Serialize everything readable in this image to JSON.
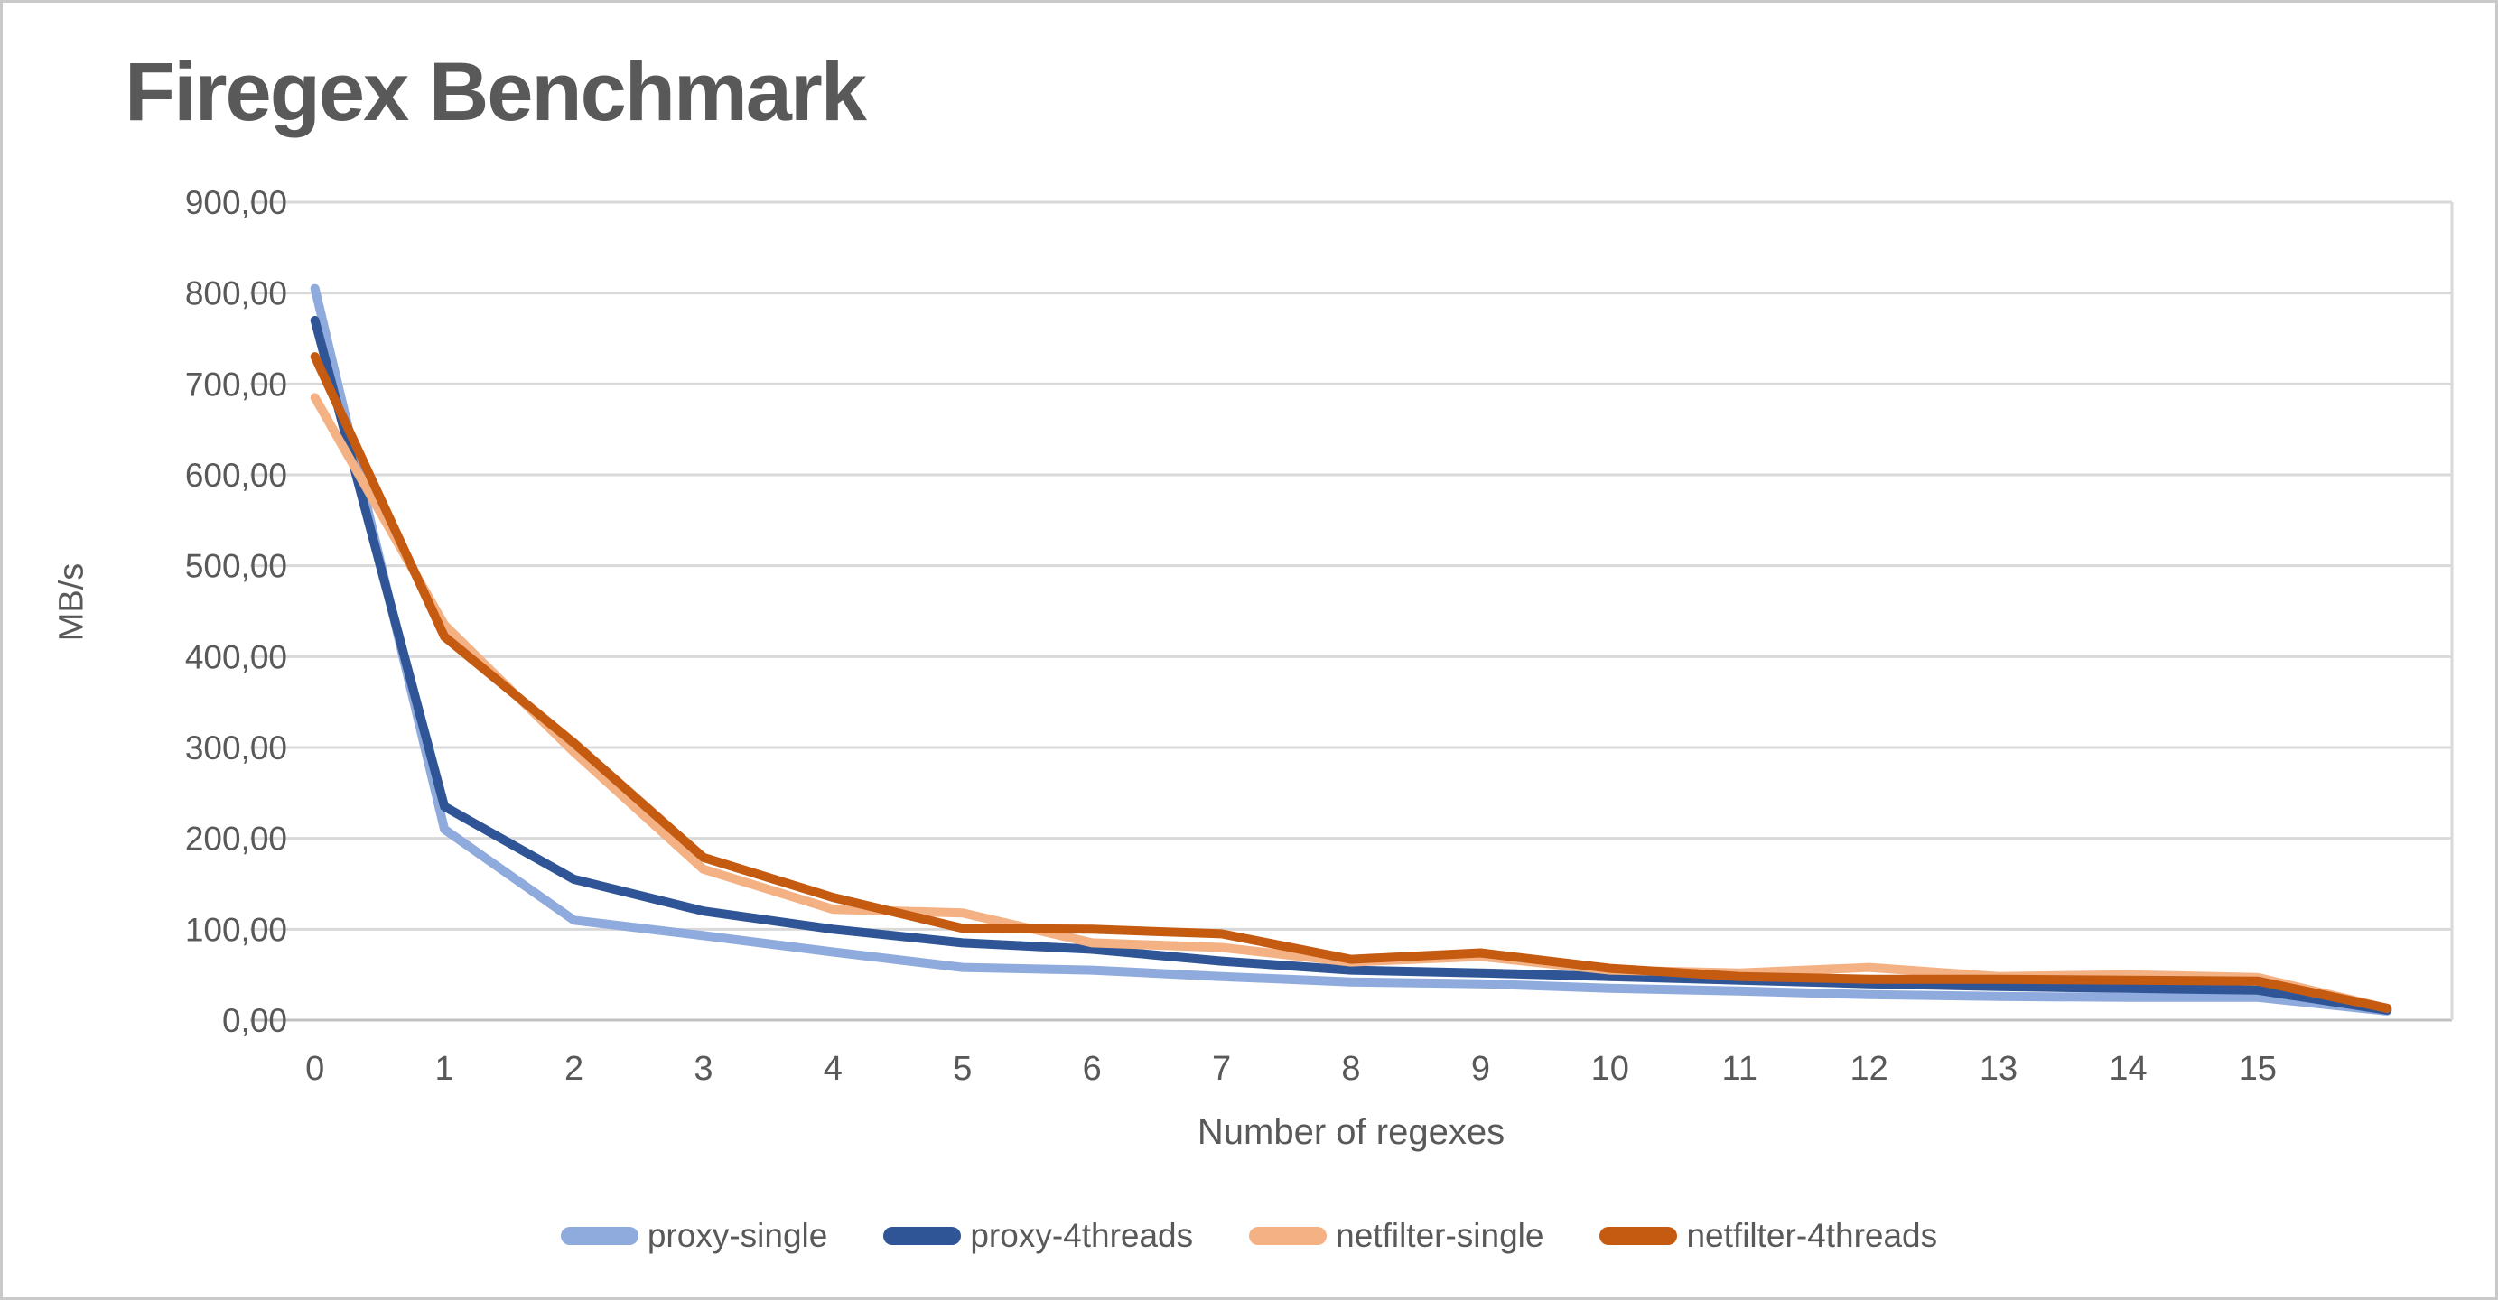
{
  "title": "Firegex Benchmark",
  "chart_data": {
    "type": "line",
    "title": "Firegex Benchmark",
    "xlabel": "Number of regexes",
    "ylabel": "MB/s",
    "ylim": [
      0,
      900
    ],
    "grid": "horizontal",
    "legend_position": "bottom",
    "x_values": [
      0,
      1,
      2,
      3,
      4,
      5,
      6,
      7,
      8,
      9,
      10,
      11,
      12,
      13,
      14,
      15,
      16
    ],
    "x_tick_labels": [
      "0",
      "1",
      "2",
      "3",
      "4",
      "5",
      "6",
      "7",
      "8",
      "9",
      "10",
      "11",
      "12",
      "13",
      "14",
      "15"
    ],
    "y_ticks": {
      "values": [
        0,
        100,
        200,
        300,
        400,
        500,
        600,
        700,
        800,
        900
      ],
      "labels": [
        "0,00",
        "100,00",
        "200,00",
        "300,00",
        "400,00",
        "500,00",
        "600,00",
        "700,00",
        "800,00",
        "900,00"
      ]
    },
    "series": [
      {
        "name": "proxy-single",
        "color": "#8FAADC",
        "values": [
          805,
          210,
          110,
          93,
          75,
          58,
          55,
          48,
          42,
          40,
          35,
          32,
          28,
          26,
          25,
          25,
          10
        ]
      },
      {
        "name": "proxy-4threads",
        "color": "#2F5597",
        "values": [
          770,
          235,
          155,
          120,
          100,
          85,
          78,
          65,
          55,
          52,
          48,
          44,
          40,
          37,
          35,
          33,
          11
        ]
      },
      {
        "name": "netfilter-single",
        "color": "#F4B183",
        "values": [
          685,
          435,
          295,
          166,
          122,
          118,
          85,
          80,
          64,
          70,
          55,
          52,
          58,
          48,
          50,
          47,
          13
        ]
      },
      {
        "name": "netfilter-4threads",
        "color": "#C55A11",
        "values": [
          730,
          422,
          305,
          179,
          135,
          101,
          100,
          95,
          67,
          74,
          57,
          48,
          45,
          45,
          44,
          43,
          13
        ]
      }
    ]
  },
  "colors": {
    "text": "#595959",
    "gridline": "#D9D9D9",
    "axis_line": "#C0C0C0",
    "background": "#FFFFFF",
    "frame_border": "#C9C9C9"
  }
}
